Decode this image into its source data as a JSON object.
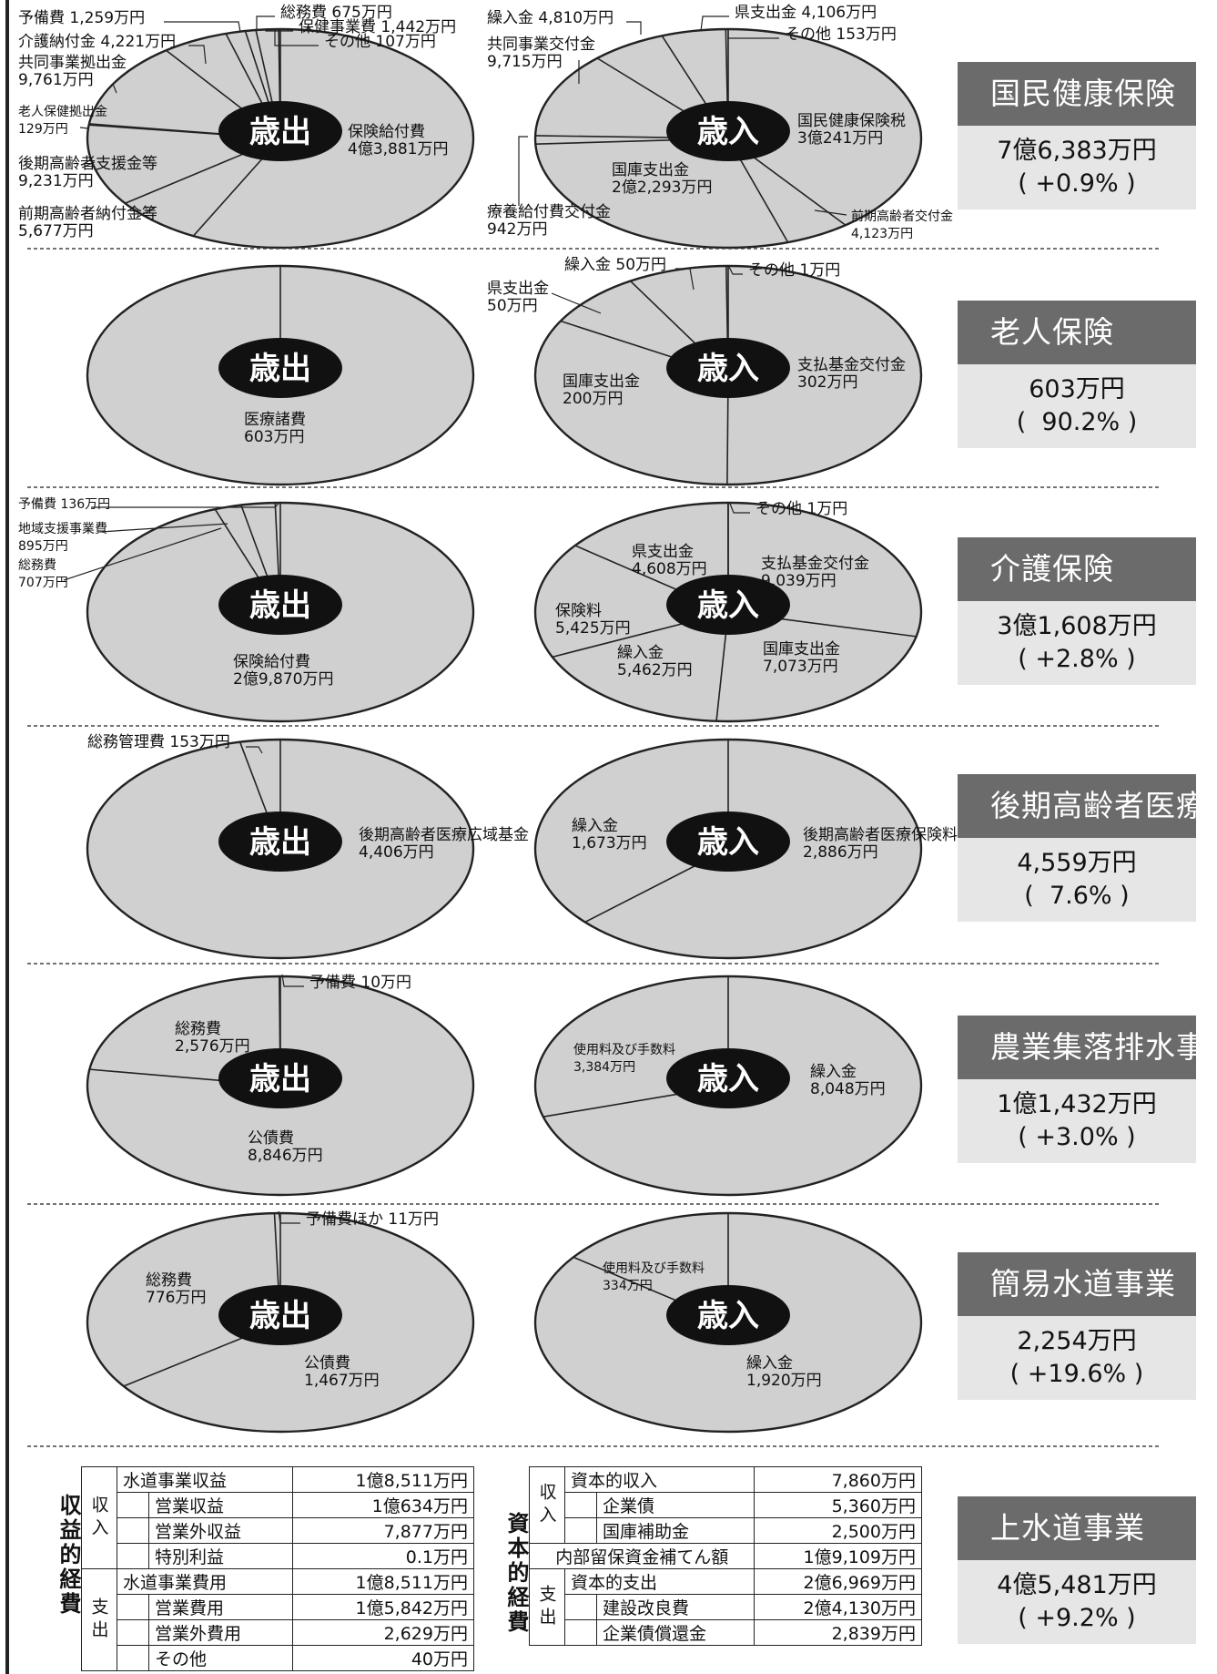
{
  "centers": {
    "expenditure": "歳出",
    "revenue": "歳入"
  },
  "chart_data": [
    {
      "type": "pie",
      "id": "kokuho-out",
      "slices": [
        {
          "label": "保険給付費",
          "value_text": "4億3,881万円",
          "value": 43881
        },
        {
          "label": "前期高齢者納付金等",
          "value_text": "5,677万円",
          "value": 5677
        },
        {
          "label": "後期高齢者支援金等",
          "value_text": "9,231万円",
          "value": 9231
        },
        {
          "label": "老人保健拠出金",
          "value_text": "129万円",
          "value": 129
        },
        {
          "label": "共同事業拠出金",
          "value_text": "9,761万円",
          "value": 9761
        },
        {
          "label": "介護納付金",
          "value_text": "4,221万円",
          "value": 4221
        },
        {
          "label": "予備費",
          "value_text": "1,259万円",
          "value": 1259
        },
        {
          "label": "総務費",
          "value_text": "675万円",
          "value": 675
        },
        {
          "label": "保健事業費",
          "value_text": "1,442万円",
          "value": 1442
        },
        {
          "label": "その他",
          "value_text": "107万円",
          "value": 107
        }
      ]
    },
    {
      "type": "pie",
      "id": "kokuho-in",
      "slices": [
        {
          "label": "国民健康保険税",
          "value_text": "3億241万円",
          "value": 30241
        },
        {
          "label": "前期高齢者交付金",
          "value_text": "4,123万円",
          "value": 4123
        },
        {
          "label": "国庫支出金",
          "value_text": "2億2,293万円",
          "value": 22293
        },
        {
          "label": "療養給付費交付金",
          "value_text": "942万円",
          "value": 942
        },
        {
          "label": "共同事業交付金",
          "value_text": "9,715万円",
          "value": 9715
        },
        {
          "label": "繰入金",
          "value_text": "4,810万円",
          "value": 4810
        },
        {
          "label": "県支出金",
          "value_text": "4,106万円",
          "value": 4106
        },
        {
          "label": "その他",
          "value_text": "153万円",
          "value": 153
        }
      ]
    },
    {
      "type": "pie",
      "id": "rojin-out",
      "slices": [
        {
          "label": "医療諸費",
          "value_text": "603万円",
          "value": 603
        }
      ]
    },
    {
      "type": "pie",
      "id": "rojin-in",
      "slices": [
        {
          "label": "支払基金交付金",
          "value_text": "302万円",
          "value": 302
        },
        {
          "label": "国庫支出金",
          "value_text": "200万円",
          "value": 200
        },
        {
          "label": "県支出金",
          "value_text": "50万円",
          "value": 50
        },
        {
          "label": "繰入金",
          "value_text": "50万円",
          "value": 50
        },
        {
          "label": "その他",
          "value_text": "1万円",
          "value": 1
        }
      ]
    },
    {
      "type": "pie",
      "id": "kaigo-out",
      "slices": [
        {
          "label": "保険給付費",
          "value_text": "2億9,870万円",
          "value": 29870
        },
        {
          "label": "総務費",
          "value_text": "707万円",
          "value": 707
        },
        {
          "label": "地域支援事業費",
          "value_text": "895万円",
          "value": 895
        },
        {
          "label": "予備費",
          "value_text": "136万円",
          "value": 136
        }
      ]
    },
    {
      "type": "pie",
      "id": "kaigo-in",
      "slices": [
        {
          "label": "支払基金交付金",
          "value_text": "9,039万円",
          "value": 9039
        },
        {
          "label": "国庫支出金",
          "value_text": "7,073万円",
          "value": 7073
        },
        {
          "label": "繰入金",
          "value_text": "5,462万円",
          "value": 5462
        },
        {
          "label": "保険料",
          "value_text": "5,425万円",
          "value": 5425
        },
        {
          "label": "県支出金",
          "value_text": "4,608万円",
          "value": 4608
        },
        {
          "label": "その他",
          "value_text": "1万円",
          "value": 1
        }
      ]
    },
    {
      "type": "pie",
      "id": "koki-out",
      "slices": [
        {
          "label": "後期高齢者医療広域基金",
          "value_text": "4,406万円",
          "value": 4406
        },
        {
          "label": "総務管理費",
          "value_text": "153万円",
          "value": 153
        }
      ]
    },
    {
      "type": "pie",
      "id": "koki-in",
      "slices": [
        {
          "label": "後期高齢者医療保険料",
          "value_text": "2,886万円",
          "value": 2886
        },
        {
          "label": "繰入金",
          "value_text": "1,673万円",
          "value": 1673
        }
      ]
    },
    {
      "type": "pie",
      "id": "nogyo-out",
      "slices": [
        {
          "label": "公債費",
          "value_text": "8,846万円",
          "value": 8846
        },
        {
          "label": "総務費",
          "value_text": "2,576万円",
          "value": 2576
        },
        {
          "label": "予備費",
          "value_text": "10万円",
          "value": 10
        }
      ]
    },
    {
      "type": "pie",
      "id": "nogyo-in",
      "slices": [
        {
          "label": "繰入金",
          "value_text": "8,048万円",
          "value": 8048
        },
        {
          "label": "使用料及び手数料",
          "value_text": "3,384万円",
          "value": 3384
        }
      ]
    },
    {
      "type": "pie",
      "id": "suido-out",
      "slices": [
        {
          "label": "公債費",
          "value_text": "1,467万円",
          "value": 1467
        },
        {
          "label": "総務費",
          "value_text": "776万円",
          "value": 776
        },
        {
          "label": "予備費ほか",
          "value_text": "11万円",
          "value": 11
        }
      ]
    },
    {
      "type": "pie",
      "id": "suido-in",
      "slices": [
        {
          "label": "繰入金",
          "value_text": "1,920万円",
          "value": 1920
        },
        {
          "label": "使用料及び手数料",
          "value_text": "334万円",
          "value": 334
        }
      ]
    }
  ],
  "sections": [
    {
      "title": "国民健康保険",
      "total": "7億6,383万円",
      "change": "( +0.9% )"
    },
    {
      "title": "老人保険",
      "total": "603万円",
      "change": "(  90.2% )"
    },
    {
      "title": "介護保険",
      "total": "3億1,608万円",
      "change": "( +2.8% )"
    },
    {
      "title": "後期高齢者医療",
      "total": "4,559万円",
      "change": "(  7.6% )"
    },
    {
      "title": "農業集落排水事業",
      "total": "1億1,432万円",
      "change": "( +3.0% )"
    },
    {
      "title": "簡易水道事業",
      "total": "2,254万円",
      "change": "( +19.6% )"
    },
    {
      "title": "上水道事業",
      "total": "4億5,481万円",
      "change": "( +9.2% )"
    }
  ],
  "table_left": {
    "group_label": "収益的経費",
    "in_label": "収入",
    "out_label": "支出",
    "rows": [
      {
        "label": "水道事業収益",
        "value": "1億8,511万円"
      },
      {
        "label": "営業収益",
        "value": "1億634万円"
      },
      {
        "label": "営業外収益",
        "value": "7,877万円"
      },
      {
        "label": "特別利益",
        "value": "0.1万円"
      },
      {
        "label": "水道事業費用",
        "value": "1億8,511万円"
      },
      {
        "label": "営業費用",
        "value": "1億5,842万円"
      },
      {
        "label": "営業外費用",
        "value": "2,629万円"
      },
      {
        "label": "その他",
        "value": "40万円"
      }
    ]
  },
  "table_right": {
    "group_label": "資本的経費",
    "in_label": "収入",
    "out_label": "支出",
    "rows": [
      {
        "label": "資本的収入",
        "value": "7,860万円"
      },
      {
        "label": "企業債",
        "value": "5,360万円"
      },
      {
        "label": "国庫補助金",
        "value": "2,500万円"
      },
      {
        "label": "内部留保資金補てん額",
        "value": "1億9,109万円"
      },
      {
        "label": "資本的支出",
        "value": "2億6,969万円"
      },
      {
        "label": "建設改良費",
        "value": "2億4,130万円"
      },
      {
        "label": "企業債償還金",
        "value": "2,839万円"
      }
    ]
  }
}
